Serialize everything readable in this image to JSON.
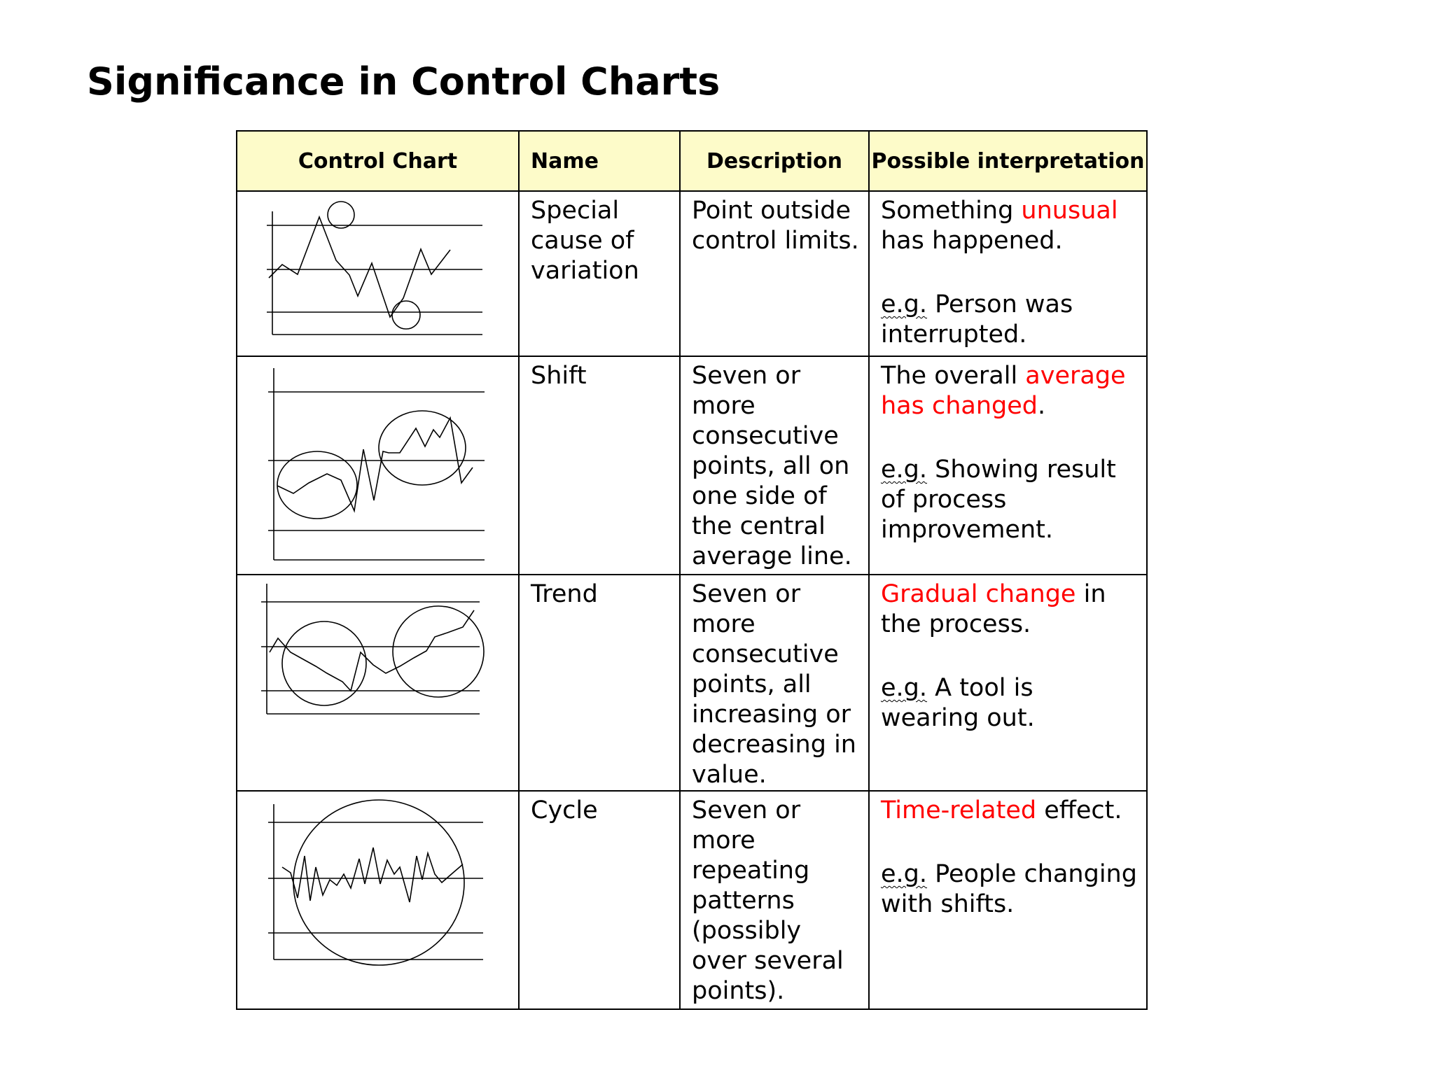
{
  "title": "Significance in Control Charts",
  "headers": {
    "control_chart": "Control Chart",
    "name": "Name",
    "description": "Description",
    "interpretation": "Possible interpretation"
  },
  "rows": [
    {
      "name": "Special cause of variation",
      "description": "Point outside control limits.",
      "interp": {
        "pre": "Something ",
        "red": "unusual",
        "post": " has happened."
      },
      "example": {
        "eg": "e.g.",
        "text": " Person was interrupted."
      }
    },
    {
      "name": "Shift",
      "description": "Seven or more consecutive points, all on one side of the central average line.",
      "interp": {
        "pre": "The overall ",
        "red": "average has changed",
        "post": "."
      },
      "example": {
        "eg": "e.g.",
        "text": " Showing result of process improvement."
      }
    },
    {
      "name": "Trend",
      "description": "Seven or more consecutive points, all increasing or decreasing in value.",
      "interp": {
        "pre": "",
        "red": "Gradual change",
        "post": " in the process."
      },
      "example": {
        "eg": "e.g.",
        "text": " A tool is wearing out."
      }
    },
    {
      "name": "Cycle",
      "description": "Seven or more repeating patterns (possibly over several points).",
      "interp": {
        "pre": "",
        "red": "Time-related",
        "post": " effect."
      },
      "example": {
        "eg": "e.g.",
        "text": " People changing with shifts."
      }
    }
  ],
  "colors": {
    "header_bg": "#fdfbc9",
    "highlight": "#ff0000"
  }
}
